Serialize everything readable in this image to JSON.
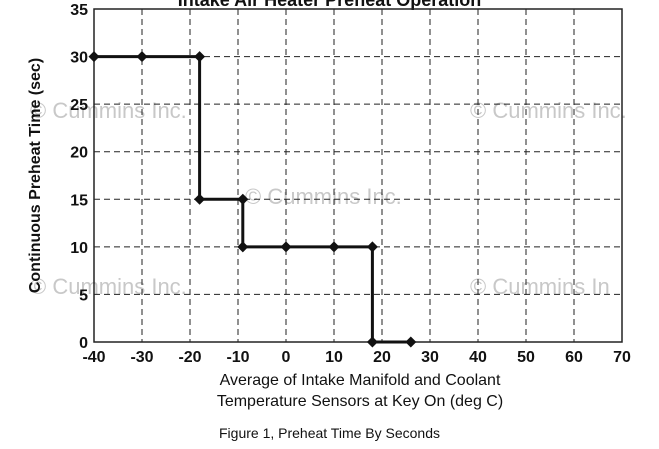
{
  "chart_data": {
    "type": "line",
    "title": "Intake Air Heater Preheat Operation",
    "xlabel_line1": "Average of Intake Manifold and Coolant",
    "xlabel_line2": "Temperature Sensors at Key On (deg C)",
    "ylabel": "Continuous Preheat Time (sec)",
    "xlim": [
      -40,
      70
    ],
    "ylim": [
      0,
      35
    ],
    "xticks": [
      -40,
      -30,
      -20,
      -10,
      0,
      10,
      20,
      30,
      40,
      50,
      60,
      70
    ],
    "yticks": [
      0,
      5,
      10,
      15,
      20,
      25,
      30,
      35
    ],
    "grid": true,
    "series": [
      {
        "x": [
          -40,
          -30,
          -18,
          -18,
          -9,
          -9,
          0,
          10,
          18,
          18,
          26
        ],
        "y": [
          30,
          30,
          30,
          15,
          15,
          10,
          10,
          10,
          10,
          0,
          0
        ]
      }
    ]
  },
  "watermarks": [
    "© Cummins Inc.",
    "© Cummins Inc.",
    "© Cummins Inc.",
    "© Cummins Inc.",
    "© Cummins In"
  ],
  "caption": "Figure 1, Preheat Time By Seconds",
  "colors": {
    "line": "#111111",
    "grid": "#222222",
    "watermark": "#c8c8c8"
  }
}
